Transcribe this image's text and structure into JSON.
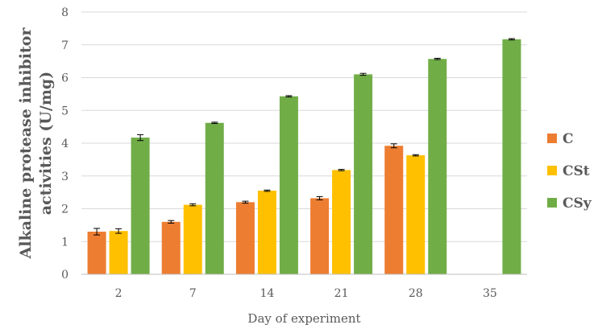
{
  "chart_data": {
    "type": "bar",
    "title": "",
    "xlabel": "Day of experiment",
    "ylabel": "Alkaline protease inhibitor activities (U/mg)",
    "ylabel_lines": [
      "Alkaline protease inhibitor",
      "activities (U/mg)"
    ],
    "ylim": [
      0,
      8
    ],
    "yticks": [
      0,
      1,
      2,
      3,
      4,
      5,
      6,
      7,
      8
    ],
    "grid": true,
    "legend_position": "right",
    "categories": [
      "2",
      "7",
      "14",
      "21",
      "28",
      "35"
    ],
    "series": [
      {
        "name": "C",
        "color": "#ED7D31",
        "values": [
          1.3,
          1.6,
          2.2,
          2.32,
          3.92,
          null
        ],
        "errors": [
          0.1,
          0.04,
          0.03,
          0.05,
          0.06,
          null
        ]
      },
      {
        "name": "CSt",
        "color": "#FFC000",
        "values": [
          1.32,
          2.12,
          2.55,
          3.18,
          3.63,
          null
        ],
        "errors": [
          0.07,
          0.03,
          0.02,
          0.02,
          0.02,
          null
        ]
      },
      {
        "name": "CSy",
        "color": "#70AD47",
        "values": [
          4.17,
          4.62,
          5.43,
          6.1,
          6.57,
          7.17
        ],
        "errors": [
          0.09,
          0.02,
          0.02,
          0.03,
          0.02,
          0.02
        ]
      }
    ]
  }
}
